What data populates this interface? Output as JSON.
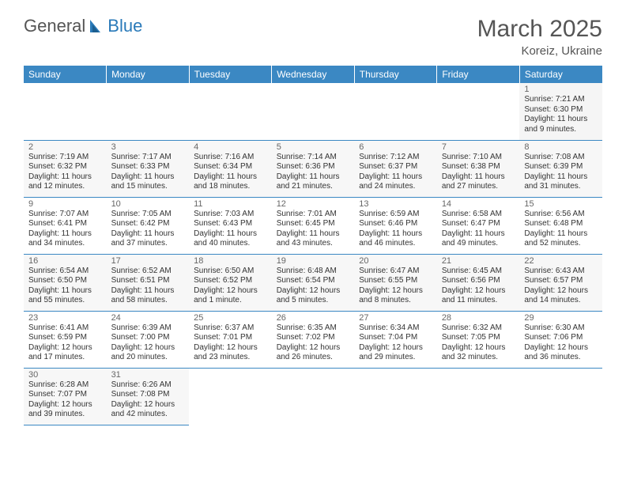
{
  "logo": {
    "part1": "General",
    "part2": "Blue"
  },
  "title": "March 2025",
  "location": "Koreiz, Ukraine",
  "colors": {
    "headerBg": "#3b88c3",
    "headerText": "#ffffff",
    "bodyText": "#333333",
    "titleText": "#555555",
    "logoBlue": "#2a7ab9",
    "rowBorder": "#3b88c3"
  },
  "dayHeaders": [
    "Sunday",
    "Monday",
    "Tuesday",
    "Wednesday",
    "Thursday",
    "Friday",
    "Saturday"
  ],
  "weeks": [
    [
      null,
      null,
      null,
      null,
      null,
      null,
      {
        "n": "1",
        "sr": "Sunrise: 7:21 AM",
        "ss": "Sunset: 6:30 PM",
        "dl": "Daylight: 11 hours and 9 minutes."
      }
    ],
    [
      {
        "n": "2",
        "sr": "Sunrise: 7:19 AM",
        "ss": "Sunset: 6:32 PM",
        "dl": "Daylight: 11 hours and 12 minutes."
      },
      {
        "n": "3",
        "sr": "Sunrise: 7:17 AM",
        "ss": "Sunset: 6:33 PM",
        "dl": "Daylight: 11 hours and 15 minutes."
      },
      {
        "n": "4",
        "sr": "Sunrise: 7:16 AM",
        "ss": "Sunset: 6:34 PM",
        "dl": "Daylight: 11 hours and 18 minutes."
      },
      {
        "n": "5",
        "sr": "Sunrise: 7:14 AM",
        "ss": "Sunset: 6:36 PM",
        "dl": "Daylight: 11 hours and 21 minutes."
      },
      {
        "n": "6",
        "sr": "Sunrise: 7:12 AM",
        "ss": "Sunset: 6:37 PM",
        "dl": "Daylight: 11 hours and 24 minutes."
      },
      {
        "n": "7",
        "sr": "Sunrise: 7:10 AM",
        "ss": "Sunset: 6:38 PM",
        "dl": "Daylight: 11 hours and 27 minutes."
      },
      {
        "n": "8",
        "sr": "Sunrise: 7:08 AM",
        "ss": "Sunset: 6:39 PM",
        "dl": "Daylight: 11 hours and 31 minutes."
      }
    ],
    [
      {
        "n": "9",
        "sr": "Sunrise: 7:07 AM",
        "ss": "Sunset: 6:41 PM",
        "dl": "Daylight: 11 hours and 34 minutes."
      },
      {
        "n": "10",
        "sr": "Sunrise: 7:05 AM",
        "ss": "Sunset: 6:42 PM",
        "dl": "Daylight: 11 hours and 37 minutes."
      },
      {
        "n": "11",
        "sr": "Sunrise: 7:03 AM",
        "ss": "Sunset: 6:43 PM",
        "dl": "Daylight: 11 hours and 40 minutes."
      },
      {
        "n": "12",
        "sr": "Sunrise: 7:01 AM",
        "ss": "Sunset: 6:45 PM",
        "dl": "Daylight: 11 hours and 43 minutes."
      },
      {
        "n": "13",
        "sr": "Sunrise: 6:59 AM",
        "ss": "Sunset: 6:46 PM",
        "dl": "Daylight: 11 hours and 46 minutes."
      },
      {
        "n": "14",
        "sr": "Sunrise: 6:58 AM",
        "ss": "Sunset: 6:47 PM",
        "dl": "Daylight: 11 hours and 49 minutes."
      },
      {
        "n": "15",
        "sr": "Sunrise: 6:56 AM",
        "ss": "Sunset: 6:48 PM",
        "dl": "Daylight: 11 hours and 52 minutes."
      }
    ],
    [
      {
        "n": "16",
        "sr": "Sunrise: 6:54 AM",
        "ss": "Sunset: 6:50 PM",
        "dl": "Daylight: 11 hours and 55 minutes."
      },
      {
        "n": "17",
        "sr": "Sunrise: 6:52 AM",
        "ss": "Sunset: 6:51 PM",
        "dl": "Daylight: 11 hours and 58 minutes."
      },
      {
        "n": "18",
        "sr": "Sunrise: 6:50 AM",
        "ss": "Sunset: 6:52 PM",
        "dl": "Daylight: 12 hours and 1 minute."
      },
      {
        "n": "19",
        "sr": "Sunrise: 6:48 AM",
        "ss": "Sunset: 6:54 PM",
        "dl": "Daylight: 12 hours and 5 minutes."
      },
      {
        "n": "20",
        "sr": "Sunrise: 6:47 AM",
        "ss": "Sunset: 6:55 PM",
        "dl": "Daylight: 12 hours and 8 minutes."
      },
      {
        "n": "21",
        "sr": "Sunrise: 6:45 AM",
        "ss": "Sunset: 6:56 PM",
        "dl": "Daylight: 12 hours and 11 minutes."
      },
      {
        "n": "22",
        "sr": "Sunrise: 6:43 AM",
        "ss": "Sunset: 6:57 PM",
        "dl": "Daylight: 12 hours and 14 minutes."
      }
    ],
    [
      {
        "n": "23",
        "sr": "Sunrise: 6:41 AM",
        "ss": "Sunset: 6:59 PM",
        "dl": "Daylight: 12 hours and 17 minutes."
      },
      {
        "n": "24",
        "sr": "Sunrise: 6:39 AM",
        "ss": "Sunset: 7:00 PM",
        "dl": "Daylight: 12 hours and 20 minutes."
      },
      {
        "n": "25",
        "sr": "Sunrise: 6:37 AM",
        "ss": "Sunset: 7:01 PM",
        "dl": "Daylight: 12 hours and 23 minutes."
      },
      {
        "n": "26",
        "sr": "Sunrise: 6:35 AM",
        "ss": "Sunset: 7:02 PM",
        "dl": "Daylight: 12 hours and 26 minutes."
      },
      {
        "n": "27",
        "sr": "Sunrise: 6:34 AM",
        "ss": "Sunset: 7:04 PM",
        "dl": "Daylight: 12 hours and 29 minutes."
      },
      {
        "n": "28",
        "sr": "Sunrise: 6:32 AM",
        "ss": "Sunset: 7:05 PM",
        "dl": "Daylight: 12 hours and 32 minutes."
      },
      {
        "n": "29",
        "sr": "Sunrise: 6:30 AM",
        "ss": "Sunset: 7:06 PM",
        "dl": "Daylight: 12 hours and 36 minutes."
      }
    ],
    [
      {
        "n": "30",
        "sr": "Sunrise: 6:28 AM",
        "ss": "Sunset: 7:07 PM",
        "dl": "Daylight: 12 hours and 39 minutes."
      },
      {
        "n": "31",
        "sr": "Sunrise: 6:26 AM",
        "ss": "Sunset: 7:08 PM",
        "dl": "Daylight: 12 hours and 42 minutes."
      },
      null,
      null,
      null,
      null,
      null
    ]
  ]
}
